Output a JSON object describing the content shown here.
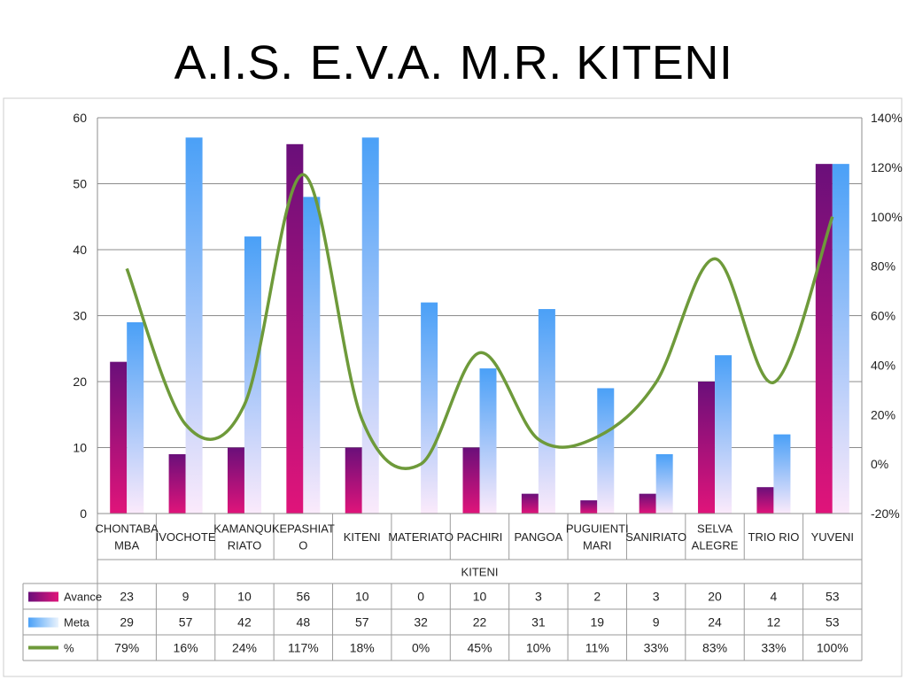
{
  "title_parts": [
    "A.I.S.",
    "E.V.A.",
    "M.R. KITENI"
  ],
  "chart_data": {
    "type": "bar",
    "categories": [
      [
        "CHONTABA",
        "MBA"
      ],
      [
        "IVOCHOTE"
      ],
      [
        "KAMANQUI",
        "RIATO"
      ],
      [
        "KEPASHIAT",
        "O"
      ],
      [
        "KITENI"
      ],
      [
        "MATERIATO"
      ],
      [
        "PACHIRI"
      ],
      [
        "PANGOA"
      ],
      [
        "PUGUIENTI",
        "MARI"
      ],
      [
        "SANIRIATO"
      ],
      [
        "SELVA",
        "ALEGRE"
      ],
      [
        "TRIO RIO"
      ],
      [
        "YUVENI"
      ]
    ],
    "xlabel": "KITENI",
    "ylim": [
      0,
      60
    ],
    "y_ticks": [
      "0",
      "10",
      "20",
      "30",
      "40",
      "50",
      "60"
    ],
    "y2lim": [
      -0.2,
      1.4
    ],
    "y2_ticks": [
      "-20%",
      "0%",
      "20%",
      "40%",
      "60%",
      "80%",
      "100%",
      "120%",
      "140%"
    ],
    "grid": true,
    "series": [
      {
        "name": "Avance",
        "kind": "bar",
        "values": [
          23,
          9,
          10,
          56,
          10,
          0,
          10,
          3,
          2,
          3,
          20,
          4,
          53
        ],
        "color": "#7a0f6e"
      },
      {
        "name": "Meta",
        "kind": "bar",
        "values": [
          29,
          57,
          42,
          48,
          57,
          32,
          22,
          31,
          19,
          9,
          24,
          12,
          53
        ],
        "color": "#5aa8f5"
      },
      {
        "name": "%",
        "kind": "line",
        "axis": "secondary",
        "values": [
          0.79,
          0.16,
          0.24,
          1.17,
          0.18,
          0,
          0.45,
          0.1,
          0.11,
          0.33,
          0.83,
          0.33,
          1.0
        ],
        "color": "#6e9a3a"
      }
    ],
    "data_table": {
      "rows": [
        {
          "label": "Avance",
          "cells": [
            "23",
            "9",
            "10",
            "56",
            "10",
            "0",
            "10",
            "3",
            "2",
            "3",
            "20",
            "4",
            "53"
          ]
        },
        {
          "label": "Meta",
          "cells": [
            "29",
            "57",
            "42",
            "48",
            "57",
            "32",
            "22",
            "31",
            "19",
            "9",
            "24",
            "12",
            "53"
          ]
        },
        {
          "label": "%",
          "cells": [
            "79%",
            "16%",
            "24%",
            "117%",
            "18%",
            "0%",
            "45%",
            "10%",
            "11%",
            "33%",
            "83%",
            "33%",
            "100%"
          ]
        }
      ]
    }
  }
}
